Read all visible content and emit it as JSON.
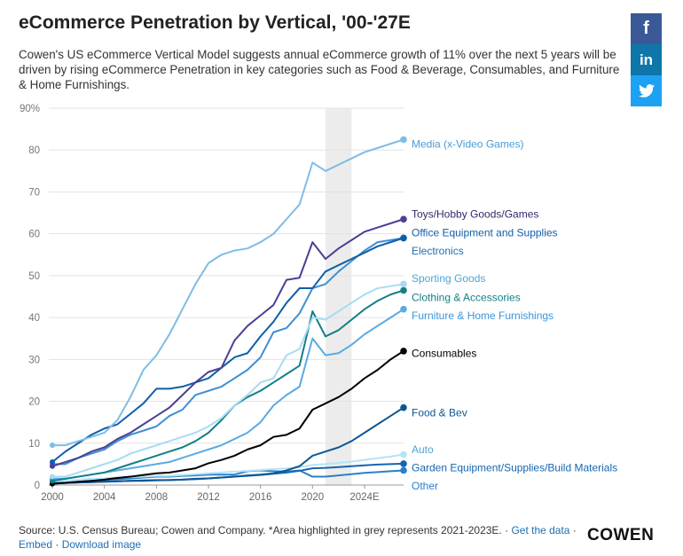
{
  "header": {
    "title": "eCommerce Penetration by Vertical, '00-'27E",
    "subtitle": "Cowen's US eCommerce Vertical Model suggests annual eCommerce growth of 11% over the next 5 years will be driven by rising eCommerce Penetration in key categories such as Food & Beverage, Consumables, and Furniture & Home Furnishings."
  },
  "social": {
    "facebook": "f",
    "linkedin": "in",
    "twitter_icon": "twitter-bird"
  },
  "footer": {
    "source": "Source: U.S. Census Bureau; Cowen and Company. *Area highlighted in grey represents 2021-2023E. ·",
    "get_data": "Get the data",
    "sep1": "·",
    "embed": "Embed",
    "sep2": "·",
    "download": "Download image",
    "brand": "COWEN"
  },
  "chart_data": {
    "type": "line",
    "title": "eCommerce Penetration by Vertical, '00-'27E",
    "xlabel": "",
    "ylabel": "",
    "xlim": [
      2000,
      2027
    ],
    "ylim": [
      0,
      90
    ],
    "y_ticks": [
      0,
      10,
      20,
      30,
      40,
      50,
      60,
      70,
      80,
      90
    ],
    "y_tick_labels": [
      "0",
      "10",
      "20",
      "30",
      "40",
      "50",
      "60",
      "70",
      "80",
      "90%"
    ],
    "x_ticks": [
      2000,
      2004,
      2008,
      2012,
      2016,
      2020,
      2024
    ],
    "x_tick_labels": [
      "2000",
      "2004",
      "2008",
      "2012",
      "2016",
      "2020",
      "2024E"
    ],
    "highlight": {
      "from": 2021,
      "to": 2023,
      "color": "#ececec"
    },
    "grid": "horizontal",
    "x": [
      2000,
      2001,
      2002,
      2003,
      2004,
      2005,
      2006,
      2007,
      2008,
      2009,
      2010,
      2011,
      2012,
      2013,
      2014,
      2015,
      2016,
      2017,
      2018,
      2019,
      2020,
      2021,
      2022,
      2023,
      2024,
      2025,
      2026,
      2027
    ],
    "series": [
      {
        "name": "Media (x-Video Games)",
        "color": "#7fbce6",
        "values": [
          9.5,
          9.5,
          10.5,
          11.5,
          12.5,
          15.5,
          21,
          27.5,
          31,
          36,
          42,
          48,
          53,
          55,
          56,
          56.5,
          58,
          60,
          63.5,
          67,
          77,
          75,
          76.5,
          78,
          79.5,
          80.5,
          81.5,
          82.5
        ]
      },
      {
        "name": "Toys/Hobby Goods/Games",
        "color": "#4a3f94",
        "values": [
          4.5,
          5.5,
          6.5,
          8,
          9,
          11,
          12.5,
          14.5,
          16.5,
          18.5,
          21.5,
          24.5,
          27,
          28,
          34.5,
          38,
          40.5,
          43,
          49,
          49.5,
          58,
          54,
          56.5,
          58.5,
          60.5,
          61.5,
          62.5,
          63.5
        ]
      },
      {
        "name": "Office Equipment and Supplies",
        "color": "#0f5ea8",
        "values": [
          5.5,
          8,
          10,
          12,
          13.5,
          14.5,
          17,
          19.5,
          23,
          23,
          23.5,
          24.5,
          25.5,
          28,
          30.5,
          31.5,
          35.5,
          39,
          43.5,
          47,
          47,
          51,
          52.5,
          54,
          55.5,
          57,
          58,
          59
        ]
      },
      {
        "name": "Electronics",
        "color": "#3f8fd3",
        "values": [
          5,
          5,
          6.5,
          7.5,
          8.5,
          10.5,
          12,
          13,
          14,
          16.5,
          18,
          21.5,
          22.5,
          23.5,
          25.5,
          27.5,
          30.5,
          36.5,
          37.5,
          41,
          47,
          48,
          51,
          53.5,
          56,
          58,
          58.5,
          59
        ]
      },
      {
        "name": "Sporting Goods",
        "color": "#a6dcf3",
        "values": [
          2,
          2,
          3,
          4,
          5,
          6,
          7.5,
          8.5,
          9.5,
          10.5,
          11.5,
          12.5,
          14,
          16,
          19,
          21.5,
          24.5,
          25.5,
          31,
          32.5,
          40,
          39.5,
          41.5,
          43.5,
          45.5,
          47,
          47.5,
          48
        ]
      },
      {
        "name": "Clothing & Accessories",
        "color": "#137f86",
        "values": [
          1,
          1.5,
          2,
          2.5,
          3,
          4,
          5,
          6,
          7,
          8,
          9,
          10.5,
          12.5,
          15.5,
          19,
          21,
          22.5,
          24.5,
          26.5,
          28.5,
          41.5,
          35.5,
          37,
          39.5,
          42,
          44,
          45.5,
          46.5
        ]
      },
      {
        "name": "Furniture & Home Furnishings",
        "color": "#5aaae3",
        "values": [
          1.5,
          1.5,
          2,
          2.5,
          3,
          3.5,
          4,
          4.5,
          5,
          5.5,
          6.5,
          7.5,
          8.5,
          9.5,
          11,
          12.5,
          15,
          19,
          21.5,
          23.5,
          35,
          31,
          31.5,
          33.5,
          36,
          38,
          40,
          42
        ]
      },
      {
        "name": "Consumables",
        "color": "#000000",
        "values": [
          0.3,
          0.5,
          0.8,
          1,
          1.3,
          1.7,
          2,
          2.4,
          2.8,
          3,
          3.5,
          4,
          5.2,
          6,
          7,
          8.5,
          9.5,
          11.5,
          12,
          13.5,
          18,
          19.5,
          21,
          23,
          25.5,
          27.5,
          30,
          32
        ]
      },
      {
        "name": "Food & Bev",
        "color": "#0d5796",
        "values": [
          0.5,
          0.5,
          0.6,
          0.7,
          0.8,
          0.9,
          1,
          1.1,
          1.2,
          1.2,
          1.3,
          1.5,
          1.6,
          1.8,
          2,
          2.3,
          2.5,
          2.8,
          3.5,
          4.5,
          7,
          8,
          9,
          10.5,
          12.5,
          14.5,
          16.5,
          18.5
        ]
      },
      {
        "name": "Auto",
        "color": "#b5e4f7",
        "values": [
          1,
          1,
          1.3,
          1.5,
          1.6,
          1.8,
          1.9,
          2,
          2.2,
          2.2,
          2.4,
          2.6,
          2.8,
          3,
          3.2,
          3.4,
          3.6,
          3.8,
          4,
          4.3,
          4.8,
          5,
          5.3,
          5.6,
          6,
          6.4,
          6.8,
          7.3
        ]
      },
      {
        "name": "Garden Equipment/Supplies/Build Materials",
        "color": "#1565b0",
        "values": [
          0.5,
          0.5,
          0.6,
          0.7,
          0.8,
          0.9,
          1,
          1,
          1.1,
          1.2,
          1.3,
          1.4,
          1.6,
          1.8,
          2,
          2.2,
          2.4,
          2.7,
          3,
          3.4,
          4,
          4.1,
          4.3,
          4.5,
          4.7,
          4.9,
          5,
          5.1
        ]
      },
      {
        "name": "Other",
        "color": "#2a7fc9",
        "values": [
          0.5,
          0.6,
          0.8,
          1,
          1.2,
          1.4,
          1.6,
          1.8,
          2,
          2,
          2.2,
          2.3,
          2.5,
          2.5,
          2.5,
          3.3,
          3.5,
          3.3,
          3.2,
          3.5,
          2,
          2,
          2.3,
          2.6,
          2.9,
          3.1,
          3.3,
          3.5
        ]
      }
    ],
    "labels": [
      {
        "series": "Media (x-Video Games)",
        "text": "Media (x-Video Games)",
        "at": 81.4,
        "color": "#4a9bd6"
      },
      {
        "series": "Toys/Hobby Goods/Games",
        "text": "Toys/Hobby Goods/Games",
        "at": 64.7,
        "color": "#2f2a6a"
      },
      {
        "series": "Office Equipment and Supplies",
        "text": "Office Equipment and Supplies",
        "at": 60.2,
        "color": "#0f5ea8"
      },
      {
        "series": "Electronics",
        "text": "Electronics",
        "at": 55.9,
        "color": "#1f6fb2"
      },
      {
        "series": "Sporting Goods",
        "text": "Sporting Goods",
        "at": 49.3,
        "color": "#4aa6d8"
      },
      {
        "series": "Clothing & Accessories",
        "text": "Clothing & Accessories",
        "at": 44.8,
        "color": "#137f86"
      },
      {
        "series": "Furniture & Home Furnishings",
        "text": "Furniture & Home Furnishings",
        "at": 40.4,
        "color": "#3b94d8"
      },
      {
        "series": "Consumables",
        "text": "Consumables",
        "at": 31.5,
        "color": "#000000"
      },
      {
        "series": "Food & Bev",
        "text": "Food & Bev",
        "at": 17.3,
        "color": "#0d5796"
      },
      {
        "series": "Auto",
        "text": "Auto",
        "at": 8.5,
        "color": "#4aa6d8"
      },
      {
        "series": "Garden Equipment/Supplies/Build Materials",
        "text": "Garden Equipment/Supplies/Build Materials",
        "at": 4.1,
        "color": "#1565b0"
      },
      {
        "series": "Other",
        "text": "Other",
        "at": -0.2,
        "color": "#2a7fc9"
      }
    ]
  }
}
